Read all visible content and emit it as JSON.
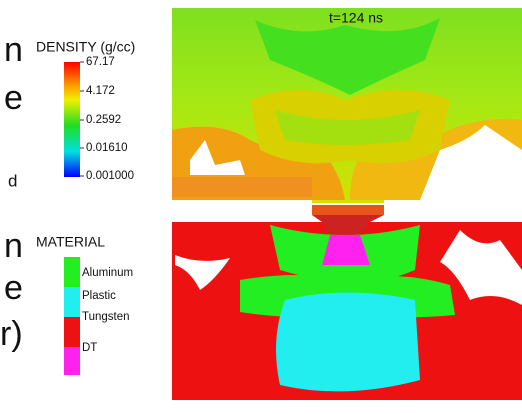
{
  "fragments": [
    "n",
    "e",
    "d",
    "n",
    "e",
    "r)"
  ],
  "density_legend": {
    "title": "DENSITY (g/cc)",
    "labels": [
      "67.17",
      "4.172",
      "0.2592",
      "0.01610",
      "0.001000"
    ]
  },
  "material_legend": {
    "title": "MATERIAL",
    "items": [
      "Aluminum",
      "Plastic",
      "Tungsten",
      "DT"
    ]
  },
  "simulation": {
    "time_label": "t=124 ns"
  }
}
